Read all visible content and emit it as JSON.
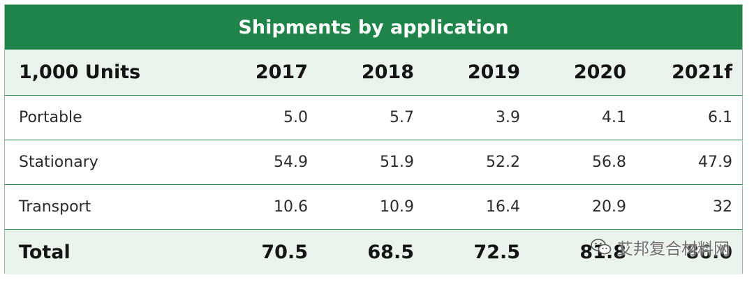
{
  "table": {
    "title": "Shipments by application",
    "header": {
      "label": "1,000 Units",
      "years": [
        "2017",
        "2018",
        "2019",
        "2020",
        "2021f"
      ]
    },
    "rows": [
      {
        "label": "Portable",
        "values": [
          "5.0",
          "5.7",
          "3.9",
          "4.1",
          "6.1"
        ]
      },
      {
        "label": "Stationary",
        "values": [
          "54.9",
          "51.9",
          "52.2",
          "56.8",
          "47.9"
        ]
      },
      {
        "label": "Transport",
        "values": [
          "10.6",
          "10.9",
          "16.4",
          "20.9",
          "32"
        ]
      }
    ],
    "total": {
      "label": "Total",
      "values": [
        "70.5",
        "68.5",
        "72.5",
        "81.8",
        "86.0"
      ]
    }
  },
  "watermark": {
    "text": "艾邦复合材料网",
    "icon": "wechat-icon"
  },
  "colors": {
    "accent": "#1e8449",
    "header_bg": "#e9f2ec"
  }
}
